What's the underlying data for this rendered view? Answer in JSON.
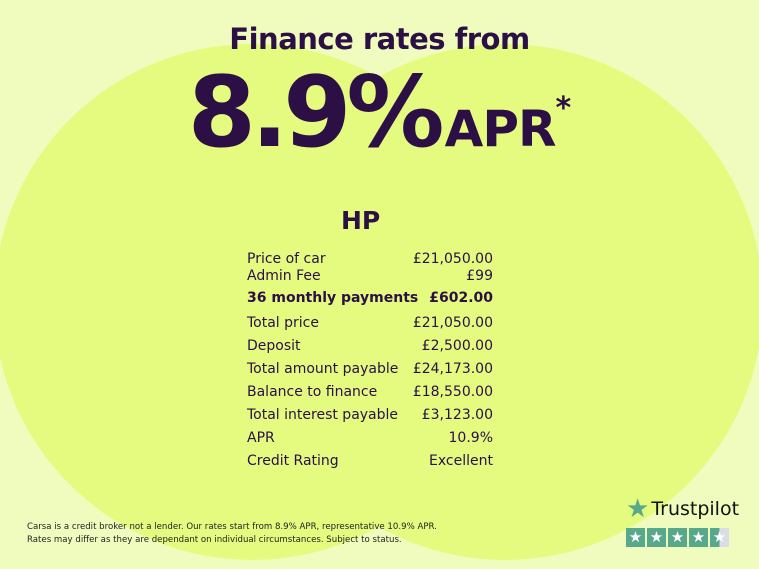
{
  "colors": {
    "background": "#f0fcbd",
    "circles": "#e4fb80",
    "text": "#2b0f45",
    "trustpilot_green": "#58a98c"
  },
  "headline": "Finance rates from",
  "rate": {
    "value": "8.9%",
    "unit": "APR",
    "asterisk": "*"
  },
  "product": "HP",
  "rows": [
    {
      "label": "Price of car",
      "value": "£21,050.00"
    },
    {
      "label": "Admin Fee",
      "value": "£99"
    },
    {
      "label": "36 monthly payments",
      "value": "£602.00"
    },
    {
      "label": "Total price",
      "value": "£21,050.00"
    },
    {
      "label": "Deposit",
      "value": "£2,500.00"
    },
    {
      "label": "Total amount payable",
      "value": "£24,173.00"
    },
    {
      "label": "Balance to finance",
      "value": "£18,550.00"
    },
    {
      "label": "Total interest payable",
      "value": "£3,123.00"
    },
    {
      "label": "APR",
      "value": "10.9%"
    },
    {
      "label": "Credit Rating",
      "value": "Excellent"
    }
  ],
  "disclaimer": {
    "line1": "Carsa is a credit broker not a lender. Our rates start from 8.9% APR, representative 10.9% APR.",
    "line2": "Rates may differ as they are dependant on individual circumstances. Subject to status."
  },
  "trustpilot": {
    "name": "Trustpilot",
    "rating": 4.5,
    "max": 5,
    "icon": "star-icon"
  }
}
